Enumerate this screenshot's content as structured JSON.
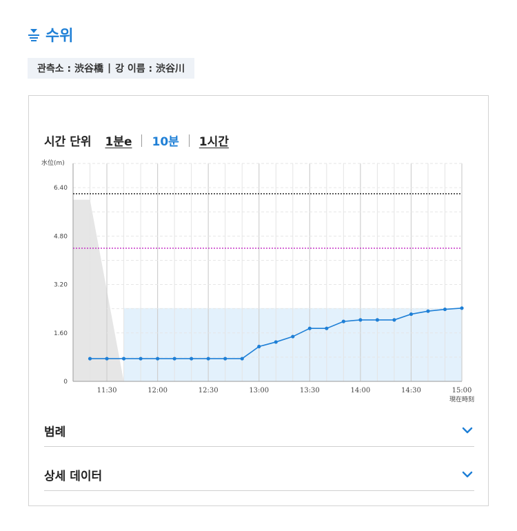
{
  "header": {
    "title": "수위"
  },
  "station": {
    "label": "관측소 : 渋谷橋",
    "separator": "|",
    "river": "강 이름 : 渋谷川"
  },
  "time_unit": {
    "label": "시간 단위",
    "options": [
      {
        "label": "1분e",
        "active": false
      },
      {
        "label": "10분",
        "active": true
      },
      {
        "label": "1시간",
        "active": false
      }
    ]
  },
  "chart_data": {
    "type": "line",
    "ylabel": "水位(m)",
    "ylim": [
      0,
      7.2
    ],
    "yticks": [
      "0",
      "1.60",
      "3.20",
      "4.80",
      "6.40"
    ],
    "xlim": [
      "11:10",
      "15:00"
    ],
    "xticks": [
      "11:30",
      "12:00",
      "12:30",
      "13:00",
      "13:30",
      "14:00",
      "14:30",
      "15:00"
    ],
    "current_time_label": "現在時刻",
    "series": [
      {
        "x": [
          "11:20",
          "11:30",
          "11:40",
          "11:50",
          "12:00",
          "12:10",
          "12:20",
          "12:30",
          "12:40",
          "12:50",
          "13:00",
          "13:10",
          "13:20",
          "13:30",
          "13:40",
          "13:50",
          "14:00",
          "14:10",
          "14:20",
          "14:30",
          "14:40",
          "14:50",
          "15:00"
        ],
        "values": [
          0.75,
          0.75,
          0.75,
          0.75,
          0.75,
          0.75,
          0.75,
          0.75,
          0.75,
          0.75,
          1.15,
          1.3,
          1.48,
          1.75,
          1.75,
          1.98,
          2.03,
          2.03,
          2.03,
          2.22,
          2.32,
          2.38,
          2.42
        ],
        "color": "#1e7fd6"
      }
    ],
    "threshold_lines": [
      {
        "value": 6.2,
        "color": "#111111"
      },
      {
        "value": 4.4,
        "color": "#c020c0"
      }
    ],
    "shaded_past": {
      "color": "#e6e6e6"
    },
    "shaded_level": {
      "value": 2.42,
      "color": "#e3f1fc"
    }
  },
  "accordion": [
    {
      "label": "범례"
    },
    {
      "label": "상세 데이터"
    }
  ],
  "colors": {
    "accent": "#1e7fd6"
  }
}
